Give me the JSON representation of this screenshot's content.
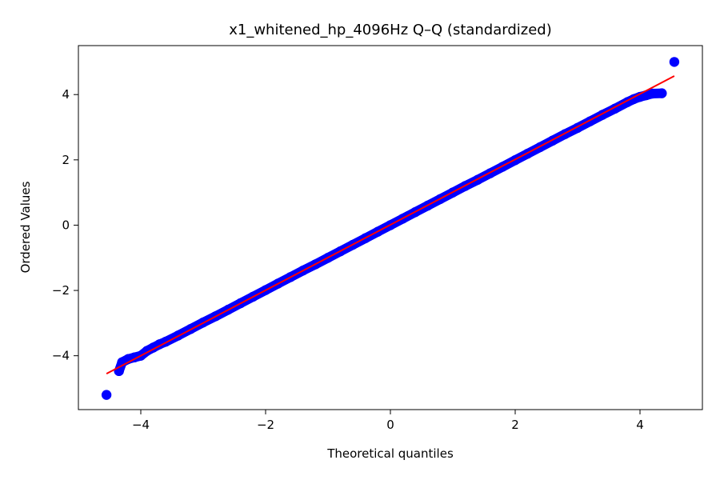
{
  "chart_data": {
    "type": "scatter",
    "title": "x1_whitened_hp_4096Hz Q–Q (standardized)",
    "xlabel": "Theoretical quantiles",
    "ylabel": "Ordered Values",
    "xlim": [
      -5.0,
      5.0
    ],
    "ylim": [
      -5.65,
      5.5
    ],
    "xticks": [
      -4,
      -2,
      0,
      2,
      4
    ],
    "yticks": [
      -4,
      -2,
      0,
      2,
      4
    ],
    "xtick_labels": [
      "−4",
      "−2",
      "0",
      "2",
      "4"
    ],
    "ytick_labels": [
      "−4",
      "−2",
      "0",
      "2",
      "4"
    ],
    "grid": false,
    "series": [
      {
        "kind": "points",
        "color": "#0000ff",
        "x": [
          -4.55,
          -4.35,
          -4.3,
          -4.2,
          -4.1,
          -4.0,
          -3.9,
          -3.8,
          -3.7,
          -3.6,
          -3.4,
          -3.2,
          -3.0,
          -2.8,
          -2.6,
          -2.4,
          -2.2,
          -2.0,
          -1.8,
          -1.6,
          -1.4,
          -1.2,
          -1.0,
          -0.8,
          -0.6,
          -0.4,
          -0.2,
          0.0,
          0.2,
          0.4,
          0.6,
          0.8,
          1.0,
          1.2,
          1.4,
          1.6,
          1.8,
          2.0,
          2.2,
          2.4,
          2.6,
          2.8,
          3.0,
          3.2,
          3.4,
          3.6,
          3.8,
          3.9,
          4.0,
          4.1,
          4.2,
          4.35,
          4.55
        ],
        "y": [
          -5.2,
          -4.47,
          -4.2,
          -4.1,
          -4.05,
          -4.0,
          -3.85,
          -3.75,
          -3.65,
          -3.57,
          -3.38,
          -3.18,
          -2.98,
          -2.79,
          -2.59,
          -2.39,
          -2.19,
          -1.99,
          -1.79,
          -1.59,
          -1.39,
          -1.2,
          -1.0,
          -0.8,
          -0.6,
          -0.4,
          -0.2,
          0.0,
          0.2,
          0.4,
          0.6,
          0.8,
          1.0,
          1.2,
          1.39,
          1.59,
          1.79,
          1.99,
          2.19,
          2.39,
          2.59,
          2.79,
          2.98,
          3.18,
          3.38,
          3.57,
          3.77,
          3.86,
          3.93,
          3.98,
          4.03,
          4.04,
          5.0
        ]
      },
      {
        "kind": "fit-line",
        "color": "#ff0000",
        "x": [
          -4.55,
          4.55
        ],
        "y": [
          -4.55,
          4.57
        ]
      }
    ]
  }
}
